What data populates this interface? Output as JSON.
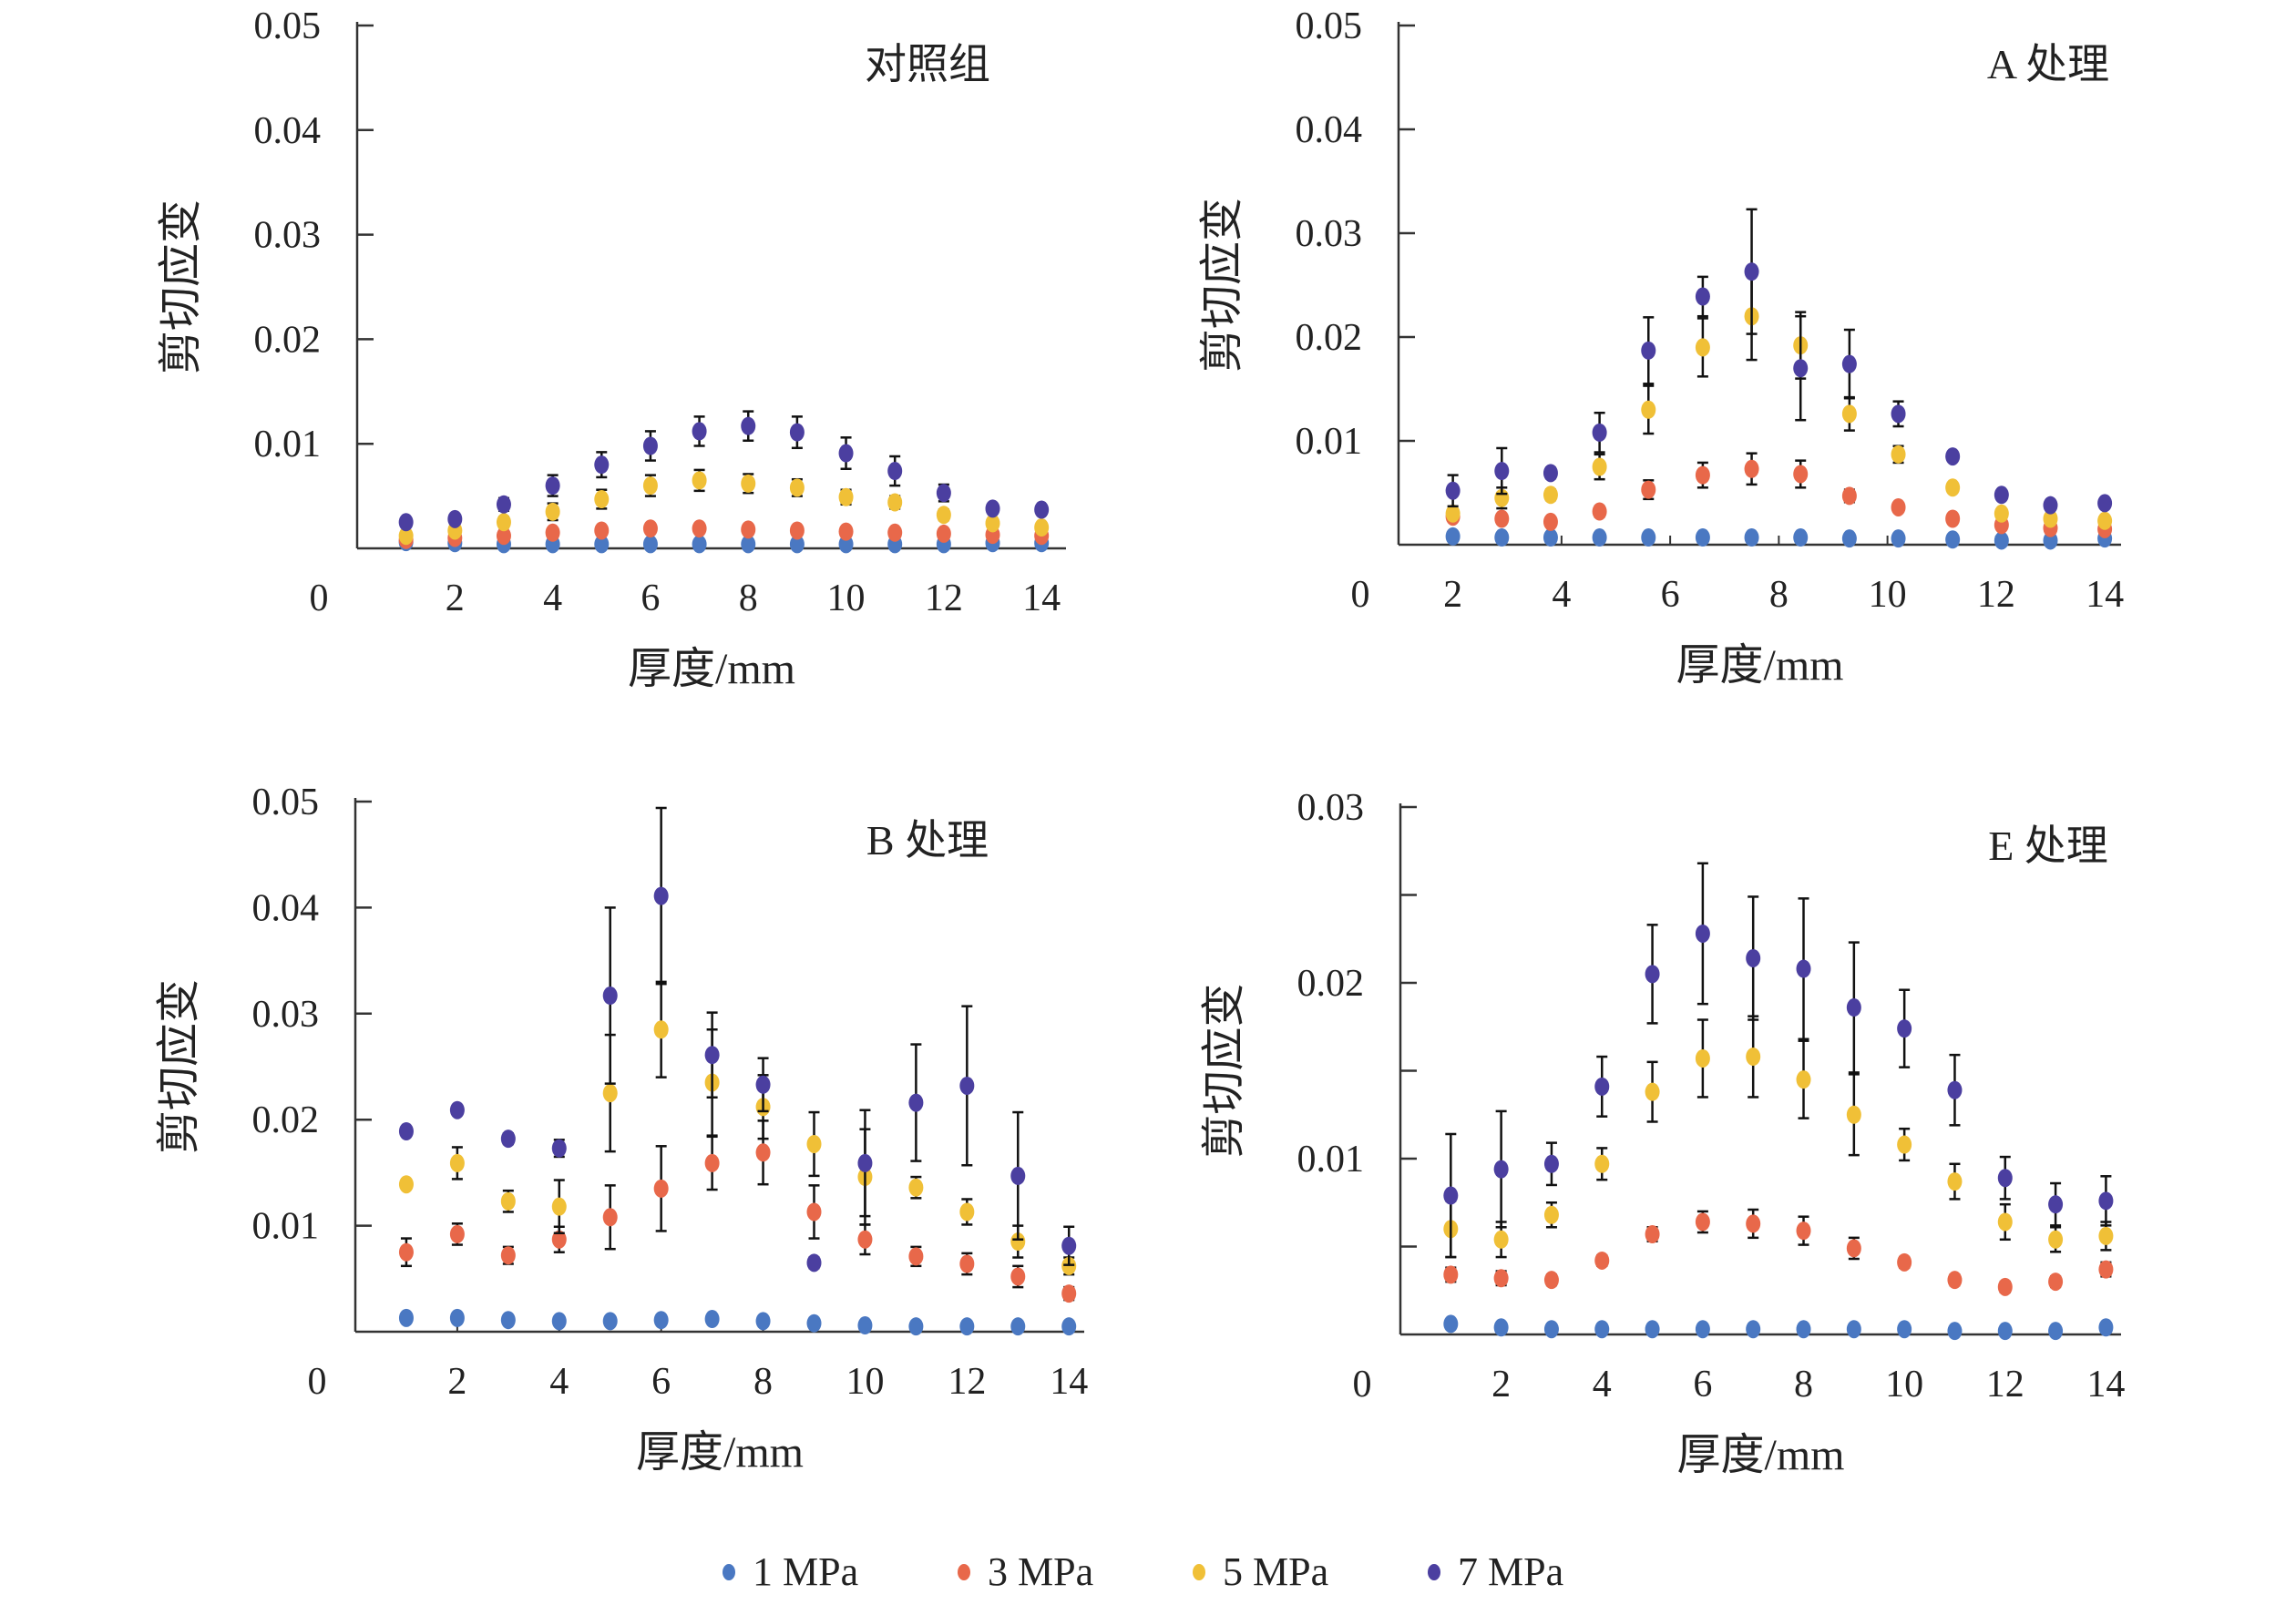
{
  "colors": {
    "1 MPa": "#4a78c2",
    "3 MPa": "#e8684a",
    "5 MPa": "#f0c037",
    "7 MPa": "#4b3fa0",
    "axis": "#333333",
    "errorbar": "#111111"
  },
  "legend": {
    "placement": "bottom-center",
    "items": [
      "1 MPa",
      "3 MPa",
      "5 MPa",
      "7 MPa"
    ]
  },
  "chart_data": [
    {
      "type": "scatter",
      "title": "对照组",
      "xlabel": "厚度/mm",
      "ylabel": "剪切应变",
      "origin_label": "0",
      "xlim": [
        0,
        14.5
      ],
      "ylim": [
        0,
        0.05
      ],
      "xticks": [
        2,
        4,
        6,
        8,
        10,
        12,
        14
      ],
      "yticks": [
        0.01,
        0.02,
        0.03,
        0.04,
        0.05
      ],
      "ytick_labels": [
        "0.01",
        "0.02",
        "0.03",
        "0.04",
        "0.05"
      ],
      "x": [
        1,
        2,
        3,
        4,
        5,
        6,
        7,
        8,
        9,
        10,
        11,
        12,
        13,
        14
      ],
      "series": [
        {
          "name": "1 MPa",
          "values": [
            0.0006,
            0.0005,
            0.0004,
            0.0004,
            0.0004,
            0.0004,
            0.0004,
            0.0004,
            0.0004,
            0.0004,
            0.0004,
            0.0004,
            0.0005,
            0.0005
          ],
          "err": [
            0,
            0,
            0,
            0,
            0,
            0,
            0,
            0,
            0,
            0,
            0,
            0,
            0,
            0
          ]
        },
        {
          "name": "3 MPa",
          "values": [
            0.0008,
            0.001,
            0.0012,
            0.0015,
            0.0017,
            0.0019,
            0.0019,
            0.0018,
            0.0017,
            0.0016,
            0.0015,
            0.0014,
            0.0013,
            0.0012
          ],
          "err": [
            0,
            0,
            0,
            0.0003,
            0.0004,
            0.0004,
            0.0004,
            0.0003,
            0.0003,
            0.0003,
            0.0003,
            0.0002,
            0,
            0
          ]
        },
        {
          "name": "5 MPa",
          "values": [
            0.0012,
            0.0017,
            0.0025,
            0.0035,
            0.0047,
            0.006,
            0.0065,
            0.0062,
            0.0058,
            0.0049,
            0.0044,
            0.0032,
            0.0024,
            0.002
          ],
          "err": [
            0,
            0,
            0.0005,
            0.0008,
            0.0009,
            0.001,
            0.001,
            0.0009,
            0.0008,
            0.0007,
            0.0006,
            0.0005,
            0.0004,
            0.0003
          ]
        },
        {
          "name": "7 MPa",
          "values": [
            0.0025,
            0.0028,
            0.0042,
            0.006,
            0.008,
            0.0098,
            0.0112,
            0.0117,
            0.0111,
            0.0091,
            0.0074,
            0.0053,
            0.0038,
            0.0037
          ],
          "err": [
            0,
            0,
            0.0006,
            0.001,
            0.0012,
            0.0014,
            0.0014,
            0.0014,
            0.0015,
            0.0015,
            0.0014,
            0.0008,
            0.0004,
            0.0004
          ]
        }
      ]
    },
    {
      "type": "scatter",
      "title": "A 处理",
      "xlabel": "厚度/mm",
      "ylabel": "剪切应变",
      "origin_label": "0",
      "xlim": [
        1,
        14.3
      ],
      "ylim": [
        0,
        0.05
      ],
      "xticks": [
        2,
        4,
        6,
        8,
        10,
        12,
        14
      ],
      "yticks": [
        0.01,
        0.02,
        0.03,
        0.04,
        0.05
      ],
      "ytick_labels": [
        "0.01",
        "0.02",
        "0.03",
        "0.04",
        "0.05"
      ],
      "x": [
        2,
        2.9,
        3.8,
        4.7,
        5.6,
        6.6,
        7.5,
        8.4,
        9.3,
        10.2,
        11.2,
        12.1,
        13,
        14
      ],
      "series": [
        {
          "name": "1 MPa",
          "values": [
            0.0008,
            0.0007,
            0.0007,
            0.0007,
            0.0007,
            0.0007,
            0.0007,
            0.0007,
            0.0006,
            0.0006,
            0.0005,
            0.0004,
            0.0004,
            0.0006
          ],
          "err": [
            0,
            0,
            0,
            0,
            0,
            0,
            0,
            0,
            0,
            0,
            0,
            0,
            0,
            0
          ]
        },
        {
          "name": "3 MPa",
          "values": [
            0.0027,
            0.0025,
            0.0022,
            0.0032,
            0.0053,
            0.0067,
            0.0073,
            0.0068,
            0.0047,
            0.0036,
            0.0025,
            0.0019,
            0.0016,
            0.0015
          ],
          "err": [
            0,
            0.0004,
            0.0003,
            0.0005,
            0.0009,
            0.0012,
            0.0015,
            0.0013,
            0.0006,
            0.0004,
            0.0003,
            0.0003,
            0,
            0
          ]
        },
        {
          "name": "5 MPa",
          "values": [
            0.003,
            0.0045,
            0.0048,
            0.0075,
            0.013,
            0.019,
            0.022,
            0.0192,
            0.0126,
            0.0087,
            0.0055,
            0.003,
            0.0025,
            0.0023
          ],
          "err": [
            0,
            0.001,
            0.0005,
            0.0012,
            0.0023,
            0.0028,
            0.0042,
            0.0032,
            0.0016,
            0.0008,
            0.0004,
            0.0003,
            0.0003,
            0.0003
          ]
        },
        {
          "name": "7 MPa",
          "values": [
            0.0052,
            0.0071,
            0.0069,
            0.0108,
            0.0187,
            0.0239,
            0.0263,
            0.017,
            0.0174,
            0.0126,
            0.0085,
            0.0048,
            0.0038,
            0.004
          ],
          "err": [
            0.0015,
            0.0022,
            0.0005,
            0.0019,
            0.0032,
            0.0019,
            0.006,
            0.005,
            0.0033,
            0.0012,
            0.0004,
            0.0004,
            0.0003,
            0.0003
          ]
        }
      ]
    },
    {
      "type": "scatter",
      "title": "B 处理",
      "xlabel": "厚度/mm",
      "ylabel": "剪切应变",
      "origin_label": "0",
      "xlim": [
        0,
        14.3
      ],
      "ylim": [
        0,
        0.05
      ],
      "xticks": [
        2,
        4,
        6,
        8,
        10,
        12,
        14
      ],
      "yticks": [
        0.01,
        0.02,
        0.03,
        0.04,
        0.05
      ],
      "ytick_labels": [
        "0.01",
        "0.02",
        "0.03",
        "0.04",
        "0.05"
      ],
      "x": [
        1,
        2,
        3,
        4,
        5,
        6,
        7,
        8,
        9,
        10,
        11,
        12,
        13,
        14
      ],
      "series": [
        {
          "name": "1 MPa",
          "values": [
            0.0013,
            0.0013,
            0.0011,
            0.001,
            0.001,
            0.0011,
            0.0012,
            0.001,
            0.0008,
            0.0006,
            0.0005,
            0.0005,
            0.0005,
            0.0005
          ],
          "err": [
            0,
            0,
            0,
            0,
            0,
            0,
            0,
            0,
            0,
            0,
            0,
            0,
            0,
            0
          ]
        },
        {
          "name": "3 MPa",
          "values": [
            0.0075,
            0.0092,
            0.0072,
            0.0087,
            0.0108,
            0.0135,
            0.0159,
            0.0169,
            0.0113,
            0.0087,
            0.0071,
            0.0064,
            0.0052,
            0.0036
          ],
          "err": [
            0.0013,
            0.001,
            0.0008,
            0.0012,
            0.003,
            0.004,
            0.0025,
            0.003,
            0.0025,
            0.0014,
            0.0009,
            0.001,
            0.001,
            0.0006
          ]
        },
        {
          "name": "5 MPa",
          "values": [
            0.0139,
            0.0159,
            0.0123,
            0.0118,
            0.0225,
            0.0285,
            0.0235,
            0.0212,
            0.0177,
            0.0146,
            0.0136,
            0.0113,
            0.0085,
            0.0062
          ],
          "err": [
            0,
            0.0015,
            0.001,
            0.0025,
            0.0055,
            0.0045,
            0.005,
            0.003,
            0.003,
            0.0045,
            0.001,
            0.0012,
            0.0015,
            0.0008
          ]
        },
        {
          "name": "7 MPa",
          "values": [
            0.0189,
            0.0209,
            0.0182,
            0.0173,
            0.0317,
            0.0411,
            0.0261,
            0.0233,
            0.0065,
            0.0159,
            0.0216,
            0.0232,
            0.0147,
            0.0081
          ],
          "err": [
            0,
            0,
            0.0005,
            0.0008,
            0.0083,
            0.0083,
            0.004,
            0.0025,
            0.0005,
            0.005,
            0.0055,
            0.0075,
            0.006,
            0.0018
          ]
        }
      ]
    },
    {
      "type": "scatter",
      "title": "E 处理",
      "xlabel": "厚度/mm",
      "ylabel": "剪切应变",
      "origin_label": "0",
      "xlim": [
        0,
        14.3
      ],
      "ylim": [
        0,
        0.03
      ],
      "xticks": [
        2,
        4,
        6,
        8,
        10,
        12,
        14
      ],
      "yticks": [
        0.005,
        0.01,
        0.015,
        0.02,
        0.025,
        0.03
      ],
      "ytick_labels": [
        "",
        "0.01",
        "",
        "0.02",
        "",
        "0.03"
      ],
      "x": [
        1,
        2,
        3,
        4,
        5,
        6,
        7,
        8,
        9,
        10,
        11,
        12,
        13,
        14
      ],
      "series": [
        {
          "name": "1 MPa",
          "values": [
            0.0006,
            0.0004,
            0.0003,
            0.0003,
            0.0003,
            0.0003,
            0.0003,
            0.0003,
            0.0003,
            0.0003,
            0.0002,
            0.0002,
            0.0002,
            0.0004
          ],
          "err": [
            0,
            0,
            0,
            0,
            0,
            0,
            0,
            0,
            0,
            0,
            0,
            0,
            0,
            0
          ]
        },
        {
          "name": "3 MPa",
          "values": [
            0.0034,
            0.0032,
            0.0031,
            0.0042,
            0.0057,
            0.0064,
            0.0063,
            0.0059,
            0.0049,
            0.0041,
            0.0031,
            0.0027,
            0.003,
            0.0037
          ],
          "err": [
            0.0004,
            0.0004,
            0.0003,
            0.0003,
            0.0004,
            0.0006,
            0.0008,
            0.0008,
            0.0006,
            0.0003,
            0.0003,
            0.0003,
            0.0003,
            0.0004
          ]
        },
        {
          "name": "5 MPa",
          "values": [
            0.006,
            0.0054,
            0.0068,
            0.0097,
            0.0138,
            0.0157,
            0.0158,
            0.0145,
            0.0125,
            0.0108,
            0.0087,
            0.0064,
            0.0054,
            0.0056
          ],
          "err": [
            0.0016,
            0.001,
            0.0007,
            0.0009,
            0.0017,
            0.0022,
            0.0023,
            0.0022,
            0.0023,
            0.0009,
            0.001,
            0.001,
            0.0007,
            0.0008
          ]
        },
        {
          "name": "7 MPa",
          "values": [
            0.0079,
            0.0094,
            0.0097,
            0.0141,
            0.0205,
            0.0228,
            0.0214,
            0.0208,
            0.0186,
            0.0174,
            0.0139,
            0.0089,
            0.0074,
            0.0076
          ],
          "err": [
            0.0035,
            0.0033,
            0.0012,
            0.0017,
            0.0028,
            0.004,
            0.0035,
            0.004,
            0.0037,
            0.0022,
            0.002,
            0.0012,
            0.0012,
            0.0014
          ]
        }
      ]
    }
  ]
}
